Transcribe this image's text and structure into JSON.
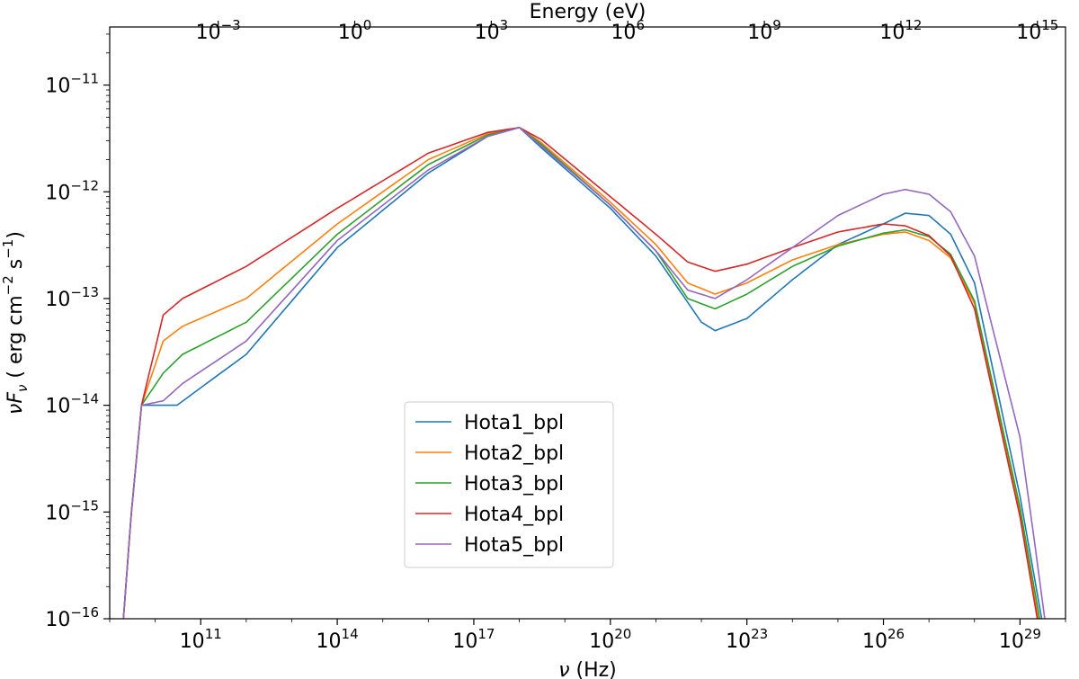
{
  "chart_data": {
    "type": "line",
    "title": "",
    "xlabel_parts": {
      "sym": "ν",
      "rest": " (Hz)"
    },
    "ylabel_parts": {
      "pre": "νF",
      "sub": "ν",
      "mid1": " ( erg cm",
      "sup1": "−2",
      "mid2": " s",
      "sup2": "−1",
      "post": ")"
    },
    "top_xlabel": "Energy (eV)",
    "x_scale": "log",
    "y_scale": "log",
    "xlim": [
      1000000000.0,
      1e+30
    ],
    "ylim": [
      1e-16,
      3.5e-11
    ],
    "x_ticks": [
      {
        "base": "10",
        "exp": "11",
        "value": 100000000000.0
      },
      {
        "base": "10",
        "exp": "14",
        "value": 100000000000000.0
      },
      {
        "base": "10",
        "exp": "17",
        "value": 1e+17
      },
      {
        "base": "10",
        "exp": "20",
        "value": 1e+20
      },
      {
        "base": "10",
        "exp": "23",
        "value": 1e+23
      },
      {
        "base": "10",
        "exp": "26",
        "value": 1e+26
      },
      {
        "base": "10",
        "exp": "29",
        "value": 1e+29
      }
    ],
    "y_ticks": [
      {
        "base": "10",
        "exp": "−16",
        "value": 1e-16
      },
      {
        "base": "10",
        "exp": "−15",
        "value": 1e-15
      },
      {
        "base": "10",
        "exp": "−14",
        "value": 1e-14
      },
      {
        "base": "10",
        "exp": "−13",
        "value": 1e-13
      },
      {
        "base": "10",
        "exp": "−12",
        "value": 1e-12
      },
      {
        "base": "10",
        "exp": "−11",
        "value": 1e-11
      }
    ],
    "top_ticks": [
      {
        "base": "10",
        "exp": "−3",
        "value": 0.001
      },
      {
        "base": "10",
        "exp": "0",
        "value": 1
      },
      {
        "base": "10",
        "exp": "3",
        "value": 1000.0
      },
      {
        "base": "10",
        "exp": "6",
        "value": 1000000.0
      },
      {
        "base": "10",
        "exp": "9",
        "value": 1000000000.0
      },
      {
        "base": "10",
        "exp": "12",
        "value": 1000000000000.0
      },
      {
        "base": "10",
        "exp": "15",
        "value": 1000000000000000.0
      }
    ],
    "hz_per_ev": 241800000000000.0,
    "legend_position": "lower center",
    "series": [
      {
        "name": "Hota1_bpl",
        "color": "#1f77b4",
        "points": [
          [
            2000000000.0,
            1e-16
          ],
          [
            3000000000.0,
            1e-15
          ],
          [
            5000000000.0,
            1e-14
          ],
          [
            30000000000.0,
            1e-14
          ],
          [
            1000000000000.0,
            3e-14
          ],
          [
            100000000000000.0,
            3e-13
          ],
          [
            1e+16,
            1.5e-12
          ],
          [
            2e+17,
            3.3e-12
          ],
          [
            1e+18,
            4e-12
          ],
          [
            3e+18,
            2.6e-12
          ],
          [
            1e+20,
            7e-13
          ],
          [
            1e+21,
            2.5e-13
          ],
          [
            1e+22,
            6e-14
          ],
          [
            2e+22,
            5e-14
          ],
          [
            1e+23,
            6.5e-14
          ],
          [
            1e+24,
            1.5e-13
          ],
          [
            1e+25,
            3.2e-13
          ],
          [
            1e+26,
            5e-13
          ],
          [
            3e+26,
            6.3e-13
          ],
          [
            1e+27,
            6e-13
          ],
          [
            3e+27,
            4e-13
          ],
          [
            1e+28,
            1.4e-13
          ],
          [
            1e+29,
            1.4e-15
          ],
          [
            3e+29,
            1e-16
          ]
        ]
      },
      {
        "name": "Hota2_bpl",
        "color": "#ff7f0e",
        "points": [
          [
            2000000000.0,
            1e-16
          ],
          [
            3000000000.0,
            1e-15
          ],
          [
            5000000000.0,
            1e-14
          ],
          [
            15000000000.0,
            4e-14
          ],
          [
            40000000000.0,
            5.5e-14
          ],
          [
            1000000000000.0,
            1e-13
          ],
          [
            100000000000000.0,
            5e-13
          ],
          [
            1e+16,
            2e-12
          ],
          [
            2e+17,
            3.5e-12
          ],
          [
            1e+18,
            4e-12
          ],
          [
            3e+18,
            2.9e-12
          ],
          [
            1e+20,
            8e-13
          ],
          [
            1e+21,
            3.2e-13
          ],
          [
            5e+21,
            1.4e-13
          ],
          [
            2e+22,
            1.1e-13
          ],
          [
            1e+23,
            1.4e-13
          ],
          [
            1e+24,
            2.3e-13
          ],
          [
            1e+25,
            3.2e-13
          ],
          [
            1e+26,
            4e-13
          ],
          [
            3e+26,
            4.2e-13
          ],
          [
            1e+27,
            3.5e-13
          ],
          [
            3e+27,
            2.4e-13
          ],
          [
            1e+28,
            9e-14
          ],
          [
            1e+29,
            1e-15
          ],
          [
            2.5e+29,
            1e-16
          ]
        ]
      },
      {
        "name": "Hota3_bpl",
        "color": "#2ca02c",
        "points": [
          [
            2000000000.0,
            1e-16
          ],
          [
            3000000000.0,
            1e-15
          ],
          [
            5000000000.0,
            1e-14
          ],
          [
            15000000000.0,
            2e-14
          ],
          [
            40000000000.0,
            3e-14
          ],
          [
            1000000000000.0,
            6e-14
          ],
          [
            100000000000000.0,
            4e-13
          ],
          [
            1e+16,
            1.8e-12
          ],
          [
            2e+17,
            3.4e-12
          ],
          [
            1e+18,
            4e-12
          ],
          [
            3e+18,
            2.8e-12
          ],
          [
            1e+20,
            7.5e-13
          ],
          [
            1e+21,
            2.8e-13
          ],
          [
            5e+21,
            1e-13
          ],
          [
            2e+22,
            8e-14
          ],
          [
            1e+23,
            1.1e-13
          ],
          [
            1e+24,
            2e-13
          ],
          [
            1e+25,
            3.1e-13
          ],
          [
            1e+26,
            4.1e-13
          ],
          [
            3e+26,
            4.4e-13
          ],
          [
            1e+27,
            3.8e-13
          ],
          [
            3e+27,
            2.6e-13
          ],
          [
            1e+28,
            9.5e-14
          ],
          [
            1e+29,
            1.1e-15
          ],
          [
            2.7e+29,
            1e-16
          ]
        ]
      },
      {
        "name": "Hota4_bpl",
        "color": "#d62728",
        "points": [
          [
            2000000000.0,
            1e-16
          ],
          [
            3000000000.0,
            1e-15
          ],
          [
            5000000000.0,
            1e-14
          ],
          [
            15000000000.0,
            7e-14
          ],
          [
            40000000000.0,
            1e-13
          ],
          [
            1000000000000.0,
            2e-13
          ],
          [
            100000000000000.0,
            7e-13
          ],
          [
            1e+16,
            2.3e-12
          ],
          [
            2e+17,
            3.6e-12
          ],
          [
            1e+18,
            4e-12
          ],
          [
            3e+18,
            3.1e-12
          ],
          [
            1e+20,
            9e-13
          ],
          [
            1e+21,
            4e-13
          ],
          [
            5e+21,
            2.2e-13
          ],
          [
            2e+22,
            1.8e-13
          ],
          [
            1e+23,
            2.1e-13
          ],
          [
            1e+24,
            3e-13
          ],
          [
            1e+25,
            4.2e-13
          ],
          [
            1e+26,
            5e-13
          ],
          [
            3e+26,
            4.8e-13
          ],
          [
            1e+27,
            3.9e-13
          ],
          [
            3e+27,
            2.5e-13
          ],
          [
            1e+28,
            8e-14
          ],
          [
            1e+29,
            9e-16
          ],
          [
            2.4e+29,
            1e-16
          ]
        ]
      },
      {
        "name": "Hota5_bpl",
        "color": "#9467bd",
        "points": [
          [
            2000000000.0,
            1e-16
          ],
          [
            3000000000.0,
            1e-15
          ],
          [
            5000000000.0,
            1e-14
          ],
          [
            15000000000.0,
            1.1e-14
          ],
          [
            40000000000.0,
            1.6e-14
          ],
          [
            1000000000000.0,
            4e-14
          ],
          [
            100000000000000.0,
            3.5e-13
          ],
          [
            1e+16,
            1.6e-12
          ],
          [
            2e+17,
            3.3e-12
          ],
          [
            1e+18,
            4e-12
          ],
          [
            3e+18,
            2.7e-12
          ],
          [
            1e+20,
            7.5e-13
          ],
          [
            1e+21,
            2.8e-13
          ],
          [
            5e+21,
            1.2e-13
          ],
          [
            2e+22,
            1e-13
          ],
          [
            1e+23,
            1.5e-13
          ],
          [
            1e+24,
            3e-13
          ],
          [
            1e+25,
            6e-13
          ],
          [
            1e+26,
            9.5e-13
          ],
          [
            3e+26,
            1.05e-12
          ],
          [
            1e+27,
            9.5e-13
          ],
          [
            3e+27,
            6.5e-13
          ],
          [
            1e+28,
            2.5e-13
          ],
          [
            1e+29,
            5e-15
          ],
          [
            2e+29,
            6e-16
          ],
          [
            3.5e+29,
            1e-16
          ]
        ]
      }
    ]
  }
}
